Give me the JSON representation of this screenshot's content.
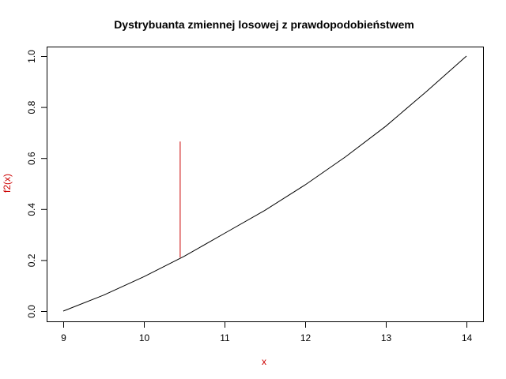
{
  "chart_data": {
    "type": "line",
    "title": "Dystrybuanta zmiennej losowej z prawdopodobieństwem",
    "xlabel": "x",
    "ylabel": "f2(x)",
    "xlim": [
      9,
      14
    ],
    "ylim": [
      0,
      1
    ],
    "x_ticks": [
      "9",
      "10",
      "11",
      "12",
      "13",
      "14"
    ],
    "y_ticks": [
      "0.0",
      "0.2",
      "0.4",
      "0.6",
      "0.8",
      "1.0"
    ],
    "grid": false,
    "series": [
      {
        "color": "#000000",
        "x": [
          9.0,
          9.5,
          10.0,
          10.5,
          11.0,
          11.5,
          12.0,
          12.5,
          13.0,
          13.5,
          14.0
        ],
        "y": [
          0.0,
          0.0625,
          0.135,
          0.215,
          0.305,
          0.395,
          0.495,
          0.605,
          0.725,
          0.86,
          1.0
        ]
      }
    ],
    "segment": {
      "color": "#cc0000",
      "x": 10.45,
      "y_from": 0.21,
      "y_to": 0.665
    },
    "colors": {
      "axis_label": "#cc0000",
      "line": "#000000"
    }
  }
}
